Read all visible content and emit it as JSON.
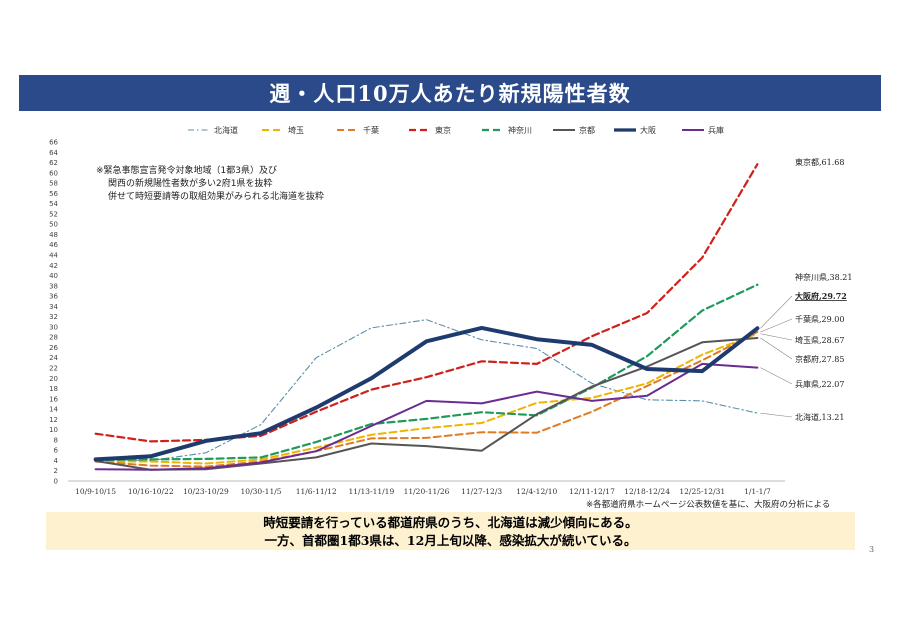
{
  "title": "週・人口10万人あたり新規陽性者数",
  "notes": [
    "※緊急事態宣言発令対象地域（1都3県）及び",
    "関西の新規陽性者数が多い2府1県を抜粋",
    "併せて時短要請等の取組効果がみられる北海道を抜粋"
  ],
  "source": "※各都道府県ホームページ公表数値を基に、大阪府の分析による",
  "summary": [
    "時短要請を行っている都道府県のうち、北海道は減少傾向にある。",
    "一方、首都圏1都3県は、12月上旬以降、感染拡大が続いている。"
  ],
  "page_number": "3",
  "chart_data": {
    "type": "line",
    "categories": [
      "10/9-10/15",
      "10/16-10/22",
      "10/23-10/29",
      "10/30-11/5",
      "11/6-11/12",
      "11/13-11/19",
      "11/20-11/26",
      "11/27-12/3",
      "12/4-12/10",
      "12/11-12/17",
      "12/18-12/24",
      "12/25-12/31",
      "1/1-1/7"
    ],
    "ylim": [
      0,
      66
    ],
    "yticks": [
      0,
      2,
      4,
      6,
      8,
      10,
      12,
      14,
      16,
      18,
      20,
      22,
      24,
      26,
      28,
      30,
      32,
      34,
      36,
      38,
      40,
      42,
      44,
      46,
      48,
      50,
      52,
      54,
      56,
      58,
      60,
      62,
      64,
      66
    ],
    "legend_position": "top",
    "series": [
      {
        "name": "北海道",
        "color": "#5b8fa8",
        "dash": "6,3,1.5,3",
        "width": 1.1,
        "values": [
          4.2,
          4.0,
          5.5,
          11.0,
          24.0,
          29.8,
          31.4,
          27.5,
          25.8,
          19.0,
          15.8,
          15.6,
          13.21
        ],
        "end_label": "北海道,13.21",
        "bold": false
      },
      {
        "name": "埼玉",
        "color": "#f0b400",
        "dash": "7,4",
        "width": 2,
        "values": [
          3.8,
          3.8,
          3.4,
          4.2,
          6.5,
          9.0,
          10.3,
          11.3,
          15.2,
          16.2,
          19.0,
          24.6,
          28.67
        ],
        "end_label": "埼玉県,28.67",
        "bold": false
      },
      {
        "name": "千葉",
        "color": "#e07b25",
        "dash": "7,4",
        "width": 2,
        "values": [
          3.8,
          3.0,
          2.8,
          3.8,
          5.8,
          8.3,
          8.4,
          9.5,
          9.4,
          13.5,
          18.5,
          23.5,
          29.0
        ],
        "end_label": "千葉県,29.00",
        "bold": false
      },
      {
        "name": "東京",
        "color": "#d0201a",
        "dash": "7,4",
        "width": 2.2,
        "values": [
          9.2,
          7.7,
          8.0,
          8.8,
          13.5,
          17.8,
          20.2,
          23.3,
          22.8,
          28.2,
          32.7,
          43.5,
          61.68
        ],
        "end_label": "東京都,61.68",
        "bold": false
      },
      {
        "name": "神奈川",
        "color": "#1e9a5a",
        "dash": "7,4",
        "width": 2.2,
        "values": [
          4.1,
          4.2,
          4.3,
          4.6,
          7.6,
          11.1,
          12.1,
          13.4,
          12.8,
          18.2,
          24.3,
          33.2,
          38.21
        ],
        "end_label": "神奈川県,38.21",
        "bold": false
      },
      {
        "name": "京都",
        "color": "#555555",
        "dash": "",
        "width": 2,
        "values": [
          3.9,
          2.2,
          2.3,
          3.4,
          4.6,
          7.3,
          6.8,
          5.9,
          13.0,
          18.4,
          22.3,
          27.0,
          27.85
        ],
        "end_label": "京都府,27.85",
        "bold": false
      },
      {
        "name": "大阪",
        "color": "#1f3b6e",
        "dash": "",
        "width": 4,
        "values": [
          4.2,
          4.8,
          7.8,
          9.3,
          14.3,
          20.0,
          27.2,
          29.8,
          27.6,
          26.5,
          21.8,
          21.4,
          29.72
        ],
        "end_label": "大阪府,29.72",
        "bold": true
      },
      {
        "name": "兵庫",
        "color": "#6b2c91",
        "dash": "",
        "width": 2,
        "values": [
          2.3,
          2.2,
          2.5,
          3.6,
          5.8,
          10.7,
          15.6,
          15.1,
          17.4,
          15.6,
          16.6,
          22.8,
          22.07
        ],
        "end_label": "兵庫県,22.07",
        "bold": false
      }
    ]
  }
}
